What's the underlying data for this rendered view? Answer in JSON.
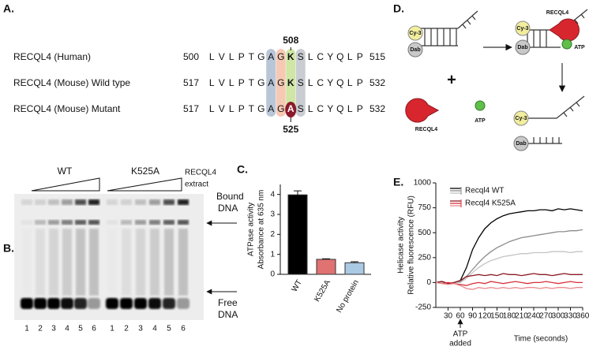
{
  "panel_a": {
    "label": "A.",
    "top_marker": "508",
    "bottom_marker": "525",
    "rows": [
      {
        "name": "RECQL4 (Human)",
        "start": 500,
        "sequence": [
          "L",
          "V",
          "L",
          "P",
          "T",
          "G",
          "A",
          "G",
          "K",
          "S",
          "L",
          "C",
          "Y",
          "Q",
          "L",
          "P"
        ],
        "end": 515
      },
      {
        "name": "RECQL4 (Mouse) Wild type",
        "start": 517,
        "sequence": [
          "L",
          "V",
          "L",
          "P",
          "T",
          "G",
          "A",
          "G",
          "K",
          "S",
          "L",
          "C",
          "Y",
          "Q",
          "L",
          "P"
        ],
        "end": 532
      },
      {
        "name": "RECQL4 (Mouse) Mutant",
        "start": 517,
        "sequence": [
          "L",
          "V",
          "L",
          "P",
          "T",
          "G",
          "A",
          "G",
          "A",
          "S",
          "L",
          "C",
          "Y",
          "Q",
          "L",
          "P"
        ],
        "end": 532
      }
    ]
  },
  "panel_b": {
    "label": "B.",
    "groups": [
      "WT",
      "K525A"
    ],
    "gradient_label": [
      "RECQL4",
      "extract"
    ],
    "bound_label": [
      "Bound",
      "DNA"
    ],
    "free_label": [
      "Free",
      "DNA"
    ],
    "lanes": [
      "1",
      "2",
      "3",
      "4",
      "5",
      "6"
    ]
  },
  "panel_d": {
    "label": "D.",
    "dye": "Cy-3",
    "quencher": "Dab",
    "enzyme": "RECQL4",
    "atp": "ATP"
  },
  "chart_data": [
    {
      "type": "bar",
      "panel": "C.",
      "ylabel": [
        "ATPase activity",
        "Absorbance at 635 nm"
      ],
      "categories": [
        "WT",
        "K525A",
        "No protein"
      ],
      "values": [
        3.98,
        0.75,
        0.58
      ],
      "errors": [
        0.2,
        0.03,
        0.05
      ],
      "colors": [
        "#000000",
        "#e07272",
        "#aac9e3"
      ],
      "ylim": [
        0,
        4.5
      ],
      "yticks": [
        0,
        1,
        2,
        3,
        4
      ]
    },
    {
      "type": "line",
      "panel": "E.",
      "ylabel": [
        "Helicase activity",
        "Relative fluorescence (RFU)"
      ],
      "xlabel": "Time (seconds)",
      "annotation": [
        "ATP",
        "added"
      ],
      "annotation_x": 60,
      "x": [
        0,
        15,
        30,
        45,
        60,
        75,
        90,
        105,
        120,
        135,
        150,
        165,
        180,
        195,
        210,
        225,
        240,
        255,
        270,
        285,
        300,
        315,
        330,
        345,
        360
      ],
      "xlim": [
        0,
        360
      ],
      "xticks": [
        30,
        60,
        90,
        120,
        150,
        180,
        210,
        240,
        270,
        300,
        330,
        360
      ],
      "ylim": [
        -250,
        1000
      ],
      "yticks": [
        -250,
        0,
        250,
        500,
        750,
        1000
      ],
      "series": [
        {
          "name": "Recql4 WT",
          "colors": [
            "#000000",
            "#8c8c8c",
            "#c4c4c4"
          ],
          "values": [
            [
              0,
              10,
              -10,
              0,
              20,
              150,
              330,
              450,
              540,
              600,
              640,
              670,
              690,
              700,
              710,
              720,
              720,
              730,
              730,
              720,
              740,
              730,
              740,
              730,
              720
            ],
            [
              0,
              5,
              -10,
              0,
              10,
              60,
              130,
              200,
              260,
              310,
              350,
              380,
              410,
              430,
              450,
              460,
              470,
              480,
              490,
              500,
              510,
              510,
              520,
              520,
              530
            ],
            [
              0,
              0,
              -10,
              0,
              0,
              40,
              100,
              150,
              190,
              220,
              240,
              260,
              270,
              280,
              290,
              290,
              300,
              300,
              300,
              310,
              310,
              310,
              300,
              310,
              310
            ]
          ]
        },
        {
          "name": "Recql4 K525A",
          "colors": [
            "#8b1a22",
            "#d6303a",
            "#e98a8f"
          ],
          "values": [
            [
              0,
              10,
              -10,
              0,
              20,
              60,
              70,
              80,
              70,
              80,
              70,
              90,
              80,
              80,
              70,
              80,
              90,
              80,
              80,
              70,
              80,
              90,
              80,
              80,
              80
            ],
            [
              0,
              -10,
              0,
              -10,
              -20,
              -30,
              -10,
              0,
              -10,
              10,
              0,
              -10,
              0,
              10,
              0,
              -10,
              0,
              0,
              10,
              0,
              -10,
              0,
              10,
              0,
              0
            ],
            [
              0,
              -10,
              -20,
              -10,
              -30,
              -60,
              -70,
              -50,
              -60,
              -50,
              -60,
              -50,
              -60,
              -50,
              -60,
              -50,
              -50,
              -60,
              -50,
              -60,
              -50,
              -50,
              -60,
              -50,
              -50
            ]
          ]
        }
      ]
    }
  ]
}
